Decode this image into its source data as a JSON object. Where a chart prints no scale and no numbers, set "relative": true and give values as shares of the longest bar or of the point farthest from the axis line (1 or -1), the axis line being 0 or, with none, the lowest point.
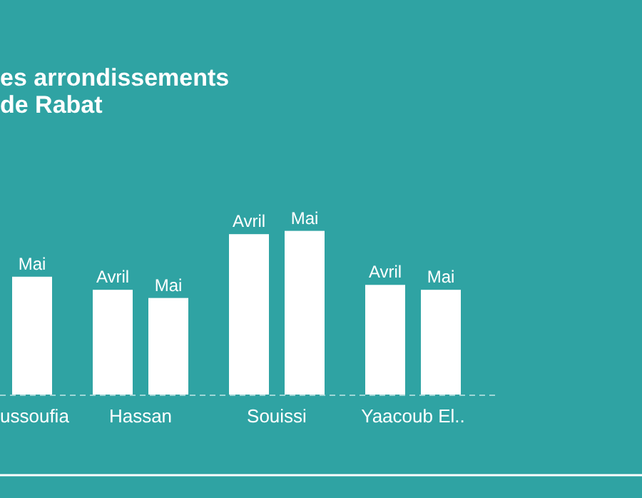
{
  "chart_data": {
    "type": "bar",
    "title": "es arrondissements\nde Rabat",
    "relative": true,
    "categories": [
      "ussoufia",
      "Hassan",
      "Souissi",
      "Yaacoub El.."
    ],
    "series": [
      {
        "name": "Avril",
        "color": "#ffffff",
        "values": [
          null,
          0.64,
          0.98,
          0.67
        ]
      },
      {
        "name": "Mai",
        "color": "#ffffff",
        "values": [
          0.72,
          0.59,
          1,
          0.64
        ]
      }
    ]
  }
}
